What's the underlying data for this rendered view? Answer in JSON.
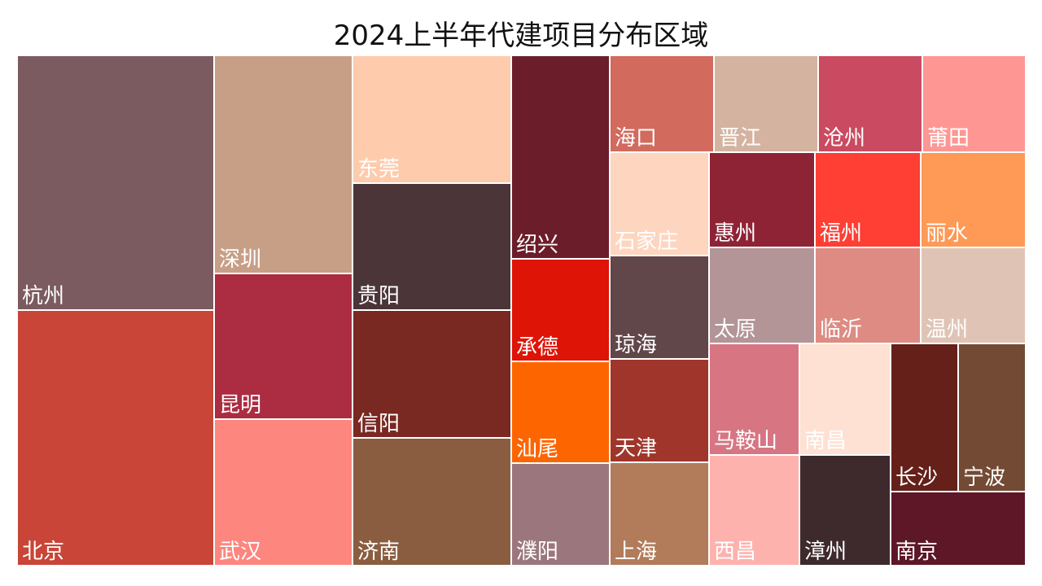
{
  "chart_data": {
    "type": "treemap",
    "title": "2024上半年代建项目分布区域",
    "items": [
      {
        "name": "杭州",
        "value": 100,
        "color": "#7b5a60"
      },
      {
        "name": "北京",
        "value": 100,
        "color": "#c84537"
      },
      {
        "name": "深圳",
        "value": 58,
        "color": "#c79f87"
      },
      {
        "name": "昆明",
        "value": 38,
        "color": "#ac2c42"
      },
      {
        "name": "武汉",
        "value": 38,
        "color": "#fd867f"
      },
      {
        "name": "东莞",
        "value": 32,
        "color": "#fecbac"
      },
      {
        "name": "贵阳",
        "value": 32,
        "color": "#4b3538"
      },
      {
        "name": "信阳",
        "value": 32,
        "color": "#792822"
      },
      {
        "name": "济南",
        "value": 32,
        "color": "#8a5d41"
      },
      {
        "name": "绍兴",
        "value": 25,
        "color": "#6b1e2a"
      },
      {
        "name": "承德",
        "value": 13,
        "color": "#de1407"
      },
      {
        "name": "汕尾",
        "value": 13,
        "color": "#fd6500"
      },
      {
        "name": "濮阳",
        "value": 13,
        "color": "#9b777d"
      },
      {
        "name": "石家庄",
        "value": 10,
        "color": "#fed5bf"
      },
      {
        "name": "琼海",
        "value": 10,
        "color": "#61464a"
      },
      {
        "name": "天津",
        "value": 10,
        "color": "#a0362b"
      },
      {
        "name": "上海",
        "value": 10,
        "color": "#b27b5a"
      },
      {
        "name": "海口",
        "value": 7,
        "color": "#d26a5e"
      },
      {
        "name": "晋江",
        "value": 7,
        "color": "#d4b3a0"
      },
      {
        "name": "沧州",
        "value": 7,
        "color": "#ca4b61"
      },
      {
        "name": "莆田",
        "value": 7,
        "color": "#fe9794"
      },
      {
        "name": "惠州",
        "value": 7,
        "color": "#8f2336"
      },
      {
        "name": "福州",
        "value": 7,
        "color": "#ff3e34"
      },
      {
        "name": "丽水",
        "value": 7,
        "color": "#fe9956"
      },
      {
        "name": "太原",
        "value": 7,
        "color": "#b39598"
      },
      {
        "name": "临沂",
        "value": 7,
        "color": "#de8b83"
      },
      {
        "name": "温州",
        "value": 7,
        "color": "#dfc4b5"
      },
      {
        "name": "马鞍山",
        "value": 7,
        "color": "#d77583"
      },
      {
        "name": "南昌",
        "value": 7,
        "color": "#fee1d2"
      },
      {
        "name": "西昌",
        "value": 6,
        "color": "#fdb2ae"
      },
      {
        "name": "漳州",
        "value": 6,
        "color": "#3e2a2d"
      },
      {
        "name": "长沙",
        "value": 5,
        "color": "#642019"
      },
      {
        "name": "宁波",
        "value": 5,
        "color": "#734a34"
      },
      {
        "name": "南京",
        "value": 4,
        "color": "#5d1726"
      }
    ]
  }
}
